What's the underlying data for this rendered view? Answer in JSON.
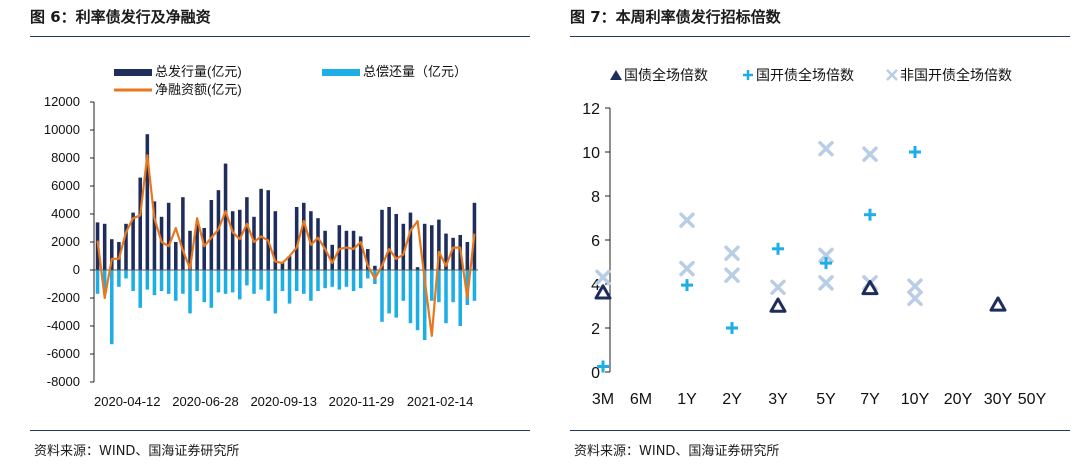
{
  "left": {
    "title": "图 6：利率债发行及净融资",
    "source": "资料来源：WIND、国海证券研究所",
    "chart_data": {
      "type": "bar",
      "ylim": [
        -8000,
        12000
      ],
      "yticks": [
        "12000",
        "10000",
        "8000",
        "6000",
        "4000",
        "2000",
        "0",
        "-2000",
        "-4000",
        "-6000",
        "-8000"
      ],
      "xtick_labels": [
        "2020-04-12",
        "2020-06-28",
        "2020-09-13",
        "2020-11-29",
        "2021-02-14"
      ],
      "xtick_index": [
        0,
        11,
        22,
        33,
        44
      ],
      "legend": [
        {
          "name": "总发行量(亿元)",
          "color": "#1f2d5c"
        },
        {
          "name": "总偿还量（亿元）",
          "color": "#1eaee6"
        },
        {
          "name": "净融资额(亿元)",
          "color": "#e8781e"
        }
      ],
      "series": [
        {
          "name": "总发行量(亿元)",
          "color": "#1f2d5c",
          "values": [
            3400,
            3300,
            2200,
            2000,
            3300,
            4100,
            6600,
            9700,
            4900,
            3800,
            4800,
            2000,
            5200,
            2800,
            3300,
            3000,
            5000,
            5700,
            7600,
            4200,
            4300,
            5200,
            3800,
            5800,
            5700,
            4200,
            500,
            1000,
            4500,
            4800,
            4200,
            3700,
            2800,
            1800,
            3200,
            2800,
            2800,
            2400,
            1500,
            300,
            4300,
            4500,
            4000,
            3300,
            4100,
            200,
            3300,
            3200,
            3600,
            2600,
            2300,
            2500,
            2000,
            4800
          ]
        },
        {
          "name": "总偿还量（亿元）",
          "color": "#1eaee6",
          "values": [
            -1700,
            -1500,
            -5300,
            -1200,
            -600,
            -1500,
            -2700,
            -1400,
            -1800,
            -1500,
            -1700,
            -2200,
            -1700,
            -3100,
            -1500,
            -2300,
            -2700,
            -1600,
            -1700,
            -1600,
            -2100,
            -1100,
            -1700,
            -1400,
            -2200,
            -3100,
            -1500,
            -2400,
            -1500,
            -1700,
            -2200,
            -1500,
            -1300,
            -1200,
            -1400,
            -1200,
            -1500,
            -1300,
            -600,
            -1000,
            -3700,
            -3100,
            -3400,
            -2200,
            -3800,
            -4300,
            -5000,
            -2200,
            -2300,
            -3800,
            -2300,
            -4000,
            -2500,
            -2200
          ]
        },
        {
          "name": "净融资额(亿元)",
          "color": "#e8781e",
          "values": [
            2100,
            -2000,
            800,
            800,
            2700,
            3700,
            3900,
            8200,
            3700,
            2000,
            1700,
            3000,
            1400,
            100,
            3700,
            1700,
            2300,
            2900,
            4200,
            2700,
            2200,
            3300,
            2000,
            2400,
            2100,
            600,
            500,
            1000,
            1600,
            3500,
            1800,
            2300,
            1500,
            500,
            1500,
            1600,
            1500,
            2000,
            300,
            -600,
            300,
            1500,
            800,
            1100,
            2800,
            3500,
            -700,
            -4700,
            1300,
            300,
            1600,
            1600,
            -2000,
            2600
          ]
        }
      ]
    }
  },
  "right": {
    "title": "图 7：本周利率债发行招标倍数",
    "source": "资料来源：WIND、国海证券研究所",
    "chart_data": {
      "type": "scatter",
      "ylim": [
        0,
        12
      ],
      "yticks": [
        "0",
        "2",
        "4",
        "6",
        "8",
        "10",
        "12"
      ],
      "categories": [
        "3M",
        "6M",
        "1Y",
        "2Y",
        "3Y",
        "5Y",
        "7Y",
        "10Y",
        "20Y",
        "30Y",
        "50Y"
      ],
      "series": [
        {
          "name": "国债全场倍数",
          "color": "#1f2d5c",
          "marker": "triangle",
          "points": [
            [
              "3M",
              3.6
            ],
            [
              "3Y",
              3.0
            ],
            [
              "7Y",
              3.8
            ],
            [
              "30Y",
              3.05
            ]
          ]
        },
        {
          "name": "国开债全场倍数",
          "color": "#1eaee6",
          "marker": "plus",
          "points": [
            [
              "3M",
              0.25
            ],
            [
              "1Y",
              3.95
            ],
            [
              "2Y",
              2.0
            ],
            [
              "3Y",
              5.6
            ],
            [
              "5Y",
              4.95
            ],
            [
              "7Y",
              7.15
            ],
            [
              "10Y",
              10.0
            ]
          ]
        },
        {
          "name": "非国开债全场倍数",
          "color": "#b9cde5",
          "marker": "x",
          "points": [
            [
              "3M",
              4.3
            ],
            [
              "1Y",
              6.9
            ],
            [
              "1Y",
              4.7
            ],
            [
              "2Y",
              5.4
            ],
            [
              "2Y",
              4.4
            ],
            [
              "3Y",
              3.85
            ],
            [
              "5Y",
              10.15
            ],
            [
              "5Y",
              5.3
            ],
            [
              "5Y",
              4.05
            ],
            [
              "7Y",
              9.9
            ],
            [
              "7Y",
              4.05
            ],
            [
              "10Y",
              3.9
            ],
            [
              "10Y",
              3.35
            ]
          ]
        }
      ]
    }
  }
}
